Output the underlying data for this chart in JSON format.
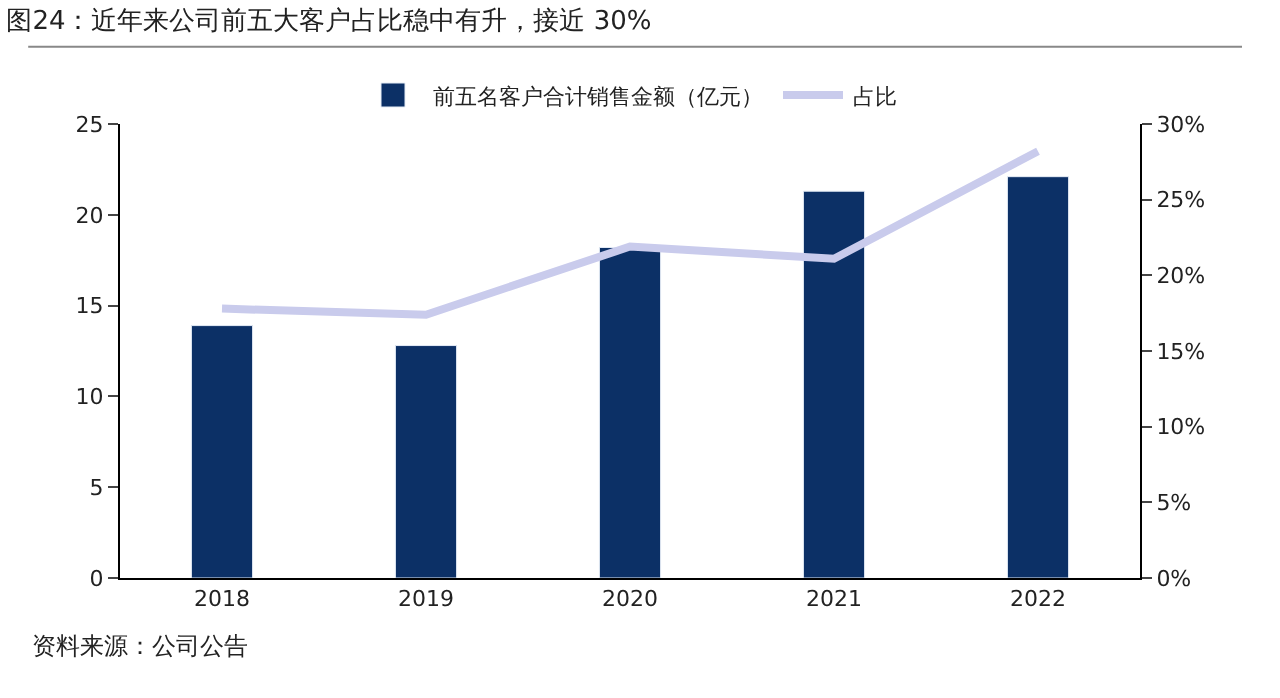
{
  "chart_data": {
    "type": "bar",
    "title": "图24：近年来公司前五大客户占比稳中有升，接近 30%",
    "categories": [
      "2018",
      "2019",
      "2020",
      "2021",
      "2022"
    ],
    "series": [
      {
        "name": "前五名客户合计销售金额（亿元）",
        "color": "#0c3066",
        "values": [
          13.9,
          12.8,
          18.2,
          21.3,
          22.1
        ]
      },
      {
        "name": "占比",
        "type": "line",
        "axis": "y2",
        "color": "#c9cbec",
        "values": [
          17.8,
          17.4,
          21.9,
          21.1,
          28.2
        ]
      }
    ],
    "ylim": [
      0,
      25
    ],
    "yticks": [
      0,
      5,
      10,
      15,
      20,
      25
    ],
    "y2lim": [
      0,
      30
    ],
    "y2ticks": [
      {
        "value": 0,
        "label": "0%"
      },
      {
        "value": 5,
        "label": "5%"
      },
      {
        "value": 10,
        "label": "10%"
      },
      {
        "value": 15,
        "label": "15%"
      },
      {
        "value": 20,
        "label": "20%"
      },
      {
        "value": 25,
        "label": "25%"
      },
      {
        "value": 30,
        "label": "30%"
      }
    ],
    "legend": "top",
    "marker": "none",
    "annotations": [
      "资料来源：公司公告"
    ]
  }
}
